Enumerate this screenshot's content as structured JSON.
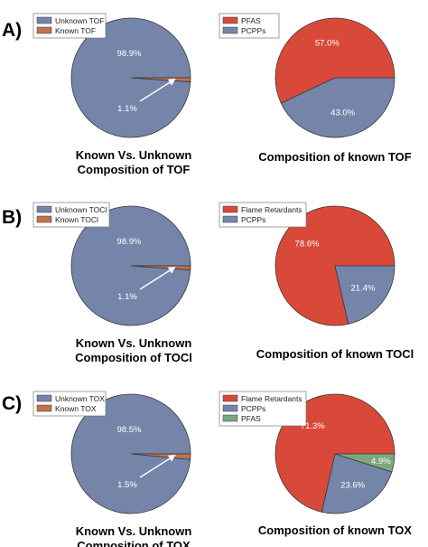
{
  "colors": {
    "blue_gray": "#7485a9",
    "orange": "#c1714c",
    "red": "#d9493a",
    "green": "#7aa87e",
    "edge": "#3a3a3a"
  },
  "panels": [
    {
      "label": "A)"
    },
    {
      "label": "B)"
    },
    {
      "label": "C)"
    }
  ],
  "chart_data": [
    {
      "type": "pie",
      "panel": "A)",
      "slices": [
        {
          "name": "Unknown TOF",
          "value": 98.9,
          "label": "98.9%",
          "color": "#7485a9"
        },
        {
          "name": "Known TOF",
          "value": 1.1,
          "label": "1.1%",
          "color": "#c1714c"
        }
      ],
      "title_lines": [
        "Known Vs. Unknown",
        "Composition of TOF"
      ],
      "legend": "top-left"
    },
    {
      "type": "pie",
      "panel": "A)",
      "slices": [
        {
          "name": "PFAS",
          "value": 57.0,
          "label": "57.0%",
          "color": "#d9493a"
        },
        {
          "name": "PCPPs",
          "value": 43.0,
          "label": "43.0%",
          "color": "#7485a9"
        }
      ],
      "title_lines": [
        "Composition of known TOF"
      ],
      "legend": "top-left"
    },
    {
      "type": "pie",
      "panel": "B)",
      "slices": [
        {
          "name": "Unknown TOCl",
          "value": 98.9,
          "label": "98.9%",
          "color": "#7485a9"
        },
        {
          "name": "Known TOCl",
          "value": 1.1,
          "label": "1.1%",
          "color": "#c1714c"
        }
      ],
      "title_lines": [
        "Known Vs. Unknown",
        "Composition of TOCl"
      ],
      "legend": "top-left"
    },
    {
      "type": "pie",
      "panel": "B)",
      "slices": [
        {
          "name": "Flame Retardants",
          "value": 78.6,
          "label": "78.6%",
          "color": "#d9493a"
        },
        {
          "name": "PCPPs",
          "value": 21.4,
          "label": "21.4%",
          "color": "#7485a9"
        }
      ],
      "title_lines": [
        "Composition of known TOCl"
      ],
      "legend": "top-left"
    },
    {
      "type": "pie",
      "panel": "C)",
      "slices": [
        {
          "name": "Unknown TOX",
          "value": 98.5,
          "label": "98.5%",
          "color": "#7485a9"
        },
        {
          "name": "Known TOX",
          "value": 1.5,
          "label": "1.5%",
          "color": "#c1714c"
        }
      ],
      "title_lines": [
        "Known Vs. Unknown",
        "Composition of TOX"
      ],
      "legend": "top-left"
    },
    {
      "type": "pie",
      "panel": "C)",
      "slices": [
        {
          "name": "Flame Retardants",
          "value": 71.3,
          "label": "71.3%",
          "color": "#d9493a"
        },
        {
          "name": "PCPPs",
          "value": 23.6,
          "label": "23.6%",
          "color": "#7485a9"
        },
        {
          "name": "PFAS",
          "value": 4.9,
          "label": "4.9%",
          "color": "#7aa87e"
        }
      ],
      "title_lines": [
        "Composition of known TOX"
      ],
      "legend": "top-left"
    }
  ]
}
